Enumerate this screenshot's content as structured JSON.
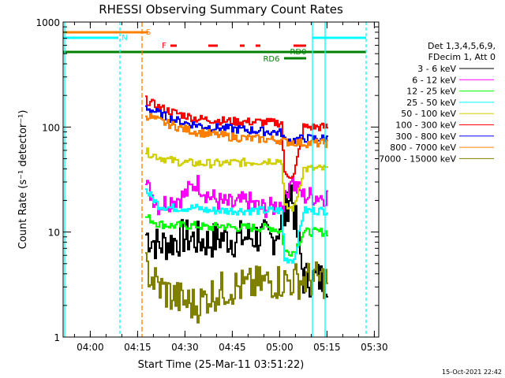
{
  "chart_data": {
    "type": "line",
    "title": "RHESSI Observing Summary Count Rates",
    "xlabel": "Start Time (25-Mar-11 03:51:22)",
    "ylabel": "Count Rate (s⁻¹ detector⁻¹)",
    "x_unit": "minutes after 03:51:22",
    "xlim": [
      0,
      100
    ],
    "ylim": [
      1,
      1000
    ],
    "yscale": "log",
    "x_ticks": [
      {
        "value": 8.6,
        "label": "04:00"
      },
      {
        "value": 23.6,
        "label": "04:15"
      },
      {
        "value": 38.6,
        "label": "04:30"
      },
      {
        "value": 53.6,
        "label": "04:45"
      },
      {
        "value": 68.6,
        "label": "05:00"
      },
      {
        "value": 83.6,
        "label": "05:15"
      },
      {
        "value": 98.6,
        "label": "05:30"
      }
    ],
    "y_ticks": [
      {
        "value": 1,
        "label": "1"
      },
      {
        "value": 10,
        "label": "10"
      },
      {
        "value": 100,
        "label": "100"
      },
      {
        "value": 1000,
        "label": "1000"
      }
    ],
    "legend": {
      "header": [
        "Det 1,3,4,5,6,9,",
        "FDecim 1, Att 0"
      ],
      "position": "right"
    },
    "series": [
      {
        "name": "3 - 6 keV",
        "color": "#000000",
        "points": [
          [
            26,
            9.5
          ],
          [
            30,
            7.5
          ],
          [
            34,
            8
          ],
          [
            38,
            9
          ],
          [
            42,
            8.5
          ],
          [
            46,
            8
          ],
          [
            50,
            9
          ],
          [
            54,
            8.5
          ],
          [
            58,
            9
          ],
          [
            62,
            9
          ],
          [
            66,
            8.5
          ],
          [
            70,
            14
          ],
          [
            72,
            26
          ],
          [
            73,
            15
          ],
          [
            76,
            3.6
          ],
          [
            84,
            3.6
          ]
        ]
      },
      {
        "name": "6 - 12 keV",
        "color": "#ff00ff",
        "points": [
          [
            26,
            28
          ],
          [
            30,
            18
          ],
          [
            34,
            20
          ],
          [
            38,
            22
          ],
          [
            42,
            30
          ],
          [
            46,
            22
          ],
          [
            50,
            19
          ],
          [
            54,
            18
          ],
          [
            58,
            20
          ],
          [
            62,
            17
          ],
          [
            66,
            17
          ],
          [
            70,
            20
          ],
          [
            72,
            35
          ],
          [
            73,
            28
          ],
          [
            76,
            22
          ],
          [
            84,
            22
          ]
        ]
      },
      {
        "name": "12 - 25 keV",
        "color": "#00ff00",
        "points": [
          [
            26,
            14
          ],
          [
            30,
            12
          ],
          [
            34,
            11.5
          ],
          [
            38,
            11.5
          ],
          [
            42,
            11.5
          ],
          [
            46,
            11
          ],
          [
            50,
            11.5
          ],
          [
            54,
            11
          ],
          [
            58,
            11
          ],
          [
            62,
            11
          ],
          [
            66,
            11
          ],
          [
            69,
            10
          ],
          [
            70,
            6.5
          ],
          [
            73,
            6.5
          ],
          [
            76,
            10
          ],
          [
            84,
            10
          ]
        ]
      },
      {
        "name": "25 - 50 keV",
        "color": "#00ffff",
        "points": [
          [
            26,
            25
          ],
          [
            30,
            18
          ],
          [
            34,
            17
          ],
          [
            38,
            17
          ],
          [
            42,
            17
          ],
          [
            46,
            16
          ],
          [
            50,
            16
          ],
          [
            54,
            16
          ],
          [
            58,
            16
          ],
          [
            62,
            16
          ],
          [
            66,
            16
          ],
          [
            69,
            16
          ],
          [
            70,
            5.5
          ],
          [
            73,
            5.5
          ],
          [
            76,
            16
          ],
          [
            84,
            16
          ]
        ]
      },
      {
        "name": "50 - 100 keV",
        "color": "#d0d000",
        "points": [
          [
            26,
            58
          ],
          [
            30,
            52
          ],
          [
            34,
            48
          ],
          [
            38,
            46
          ],
          [
            42,
            45
          ],
          [
            46,
            45
          ],
          [
            50,
            45
          ],
          [
            54,
            46
          ],
          [
            58,
            46
          ],
          [
            62,
            47
          ],
          [
            66,
            48
          ],
          [
            69,
            48
          ],
          [
            70,
            17
          ],
          [
            73,
            17
          ],
          [
            76,
            40
          ],
          [
            84,
            40
          ]
        ]
      },
      {
        "name": "100 - 300 keV",
        "color": "#ff0000",
        "points": [
          [
            26,
            180
          ],
          [
            30,
            155
          ],
          [
            34,
            140
          ],
          [
            38,
            130
          ],
          [
            42,
            120
          ],
          [
            46,
            118
          ],
          [
            50,
            115
          ],
          [
            54,
            113
          ],
          [
            58,
            112
          ],
          [
            62,
            112
          ],
          [
            66,
            110
          ],
          [
            69,
            110
          ],
          [
            70,
            35
          ],
          [
            73,
            35
          ],
          [
            76,
            100
          ],
          [
            84,
            100
          ]
        ]
      },
      {
        "name": "300 - 800 keV",
        "color": "#0000ff",
        "points": [
          [
            26,
            155
          ],
          [
            30,
            135
          ],
          [
            34,
            120
          ],
          [
            38,
            110
          ],
          [
            42,
            105
          ],
          [
            46,
            100
          ],
          [
            50,
            98
          ],
          [
            54,
            96
          ],
          [
            58,
            94
          ],
          [
            62,
            92
          ],
          [
            66,
            90
          ],
          [
            69,
            88
          ],
          [
            70,
            75
          ],
          [
            73,
            75
          ],
          [
            76,
            78
          ],
          [
            84,
            78
          ]
        ]
      },
      {
        "name": "800 - 7000 keV",
        "color": "#ff8000",
        "points": [
          [
            26,
            130
          ],
          [
            30,
            115
          ],
          [
            34,
            105
          ],
          [
            38,
            96
          ],
          [
            42,
            90
          ],
          [
            46,
            86
          ],
          [
            50,
            83
          ],
          [
            54,
            80
          ],
          [
            58,
            78
          ],
          [
            62,
            77
          ],
          [
            66,
            76
          ],
          [
            69,
            75
          ],
          [
            70,
            72
          ],
          [
            73,
            72
          ],
          [
            76,
            70
          ],
          [
            84,
            70
          ]
        ]
      },
      {
        "name": "7000 - 15000 keV",
        "color": "#808000",
        "points": [
          [
            26,
            4.5
          ],
          [
            30,
            3
          ],
          [
            34,
            2.5
          ],
          [
            38,
            2.2
          ],
          [
            42,
            2
          ],
          [
            46,
            2.5
          ],
          [
            50,
            2.8
          ],
          [
            54,
            3
          ],
          [
            58,
            3
          ],
          [
            62,
            3.2
          ],
          [
            66,
            3.4
          ],
          [
            69,
            3.4
          ],
          [
            76,
            3.5
          ],
          [
            84,
            3.5
          ]
        ]
      }
    ],
    "annotations": [
      {
        "label": "S",
        "color": "#ff8000"
      },
      {
        "label": "N",
        "color": "#00ffff"
      },
      {
        "label": "F",
        "color": "#ff0000"
      },
      {
        "label": "RD0",
        "color": "#008000"
      },
      {
        "label": "RD6",
        "color": "#008000"
      }
    ],
    "timestamp": "15-Oct-2021 22:42"
  }
}
